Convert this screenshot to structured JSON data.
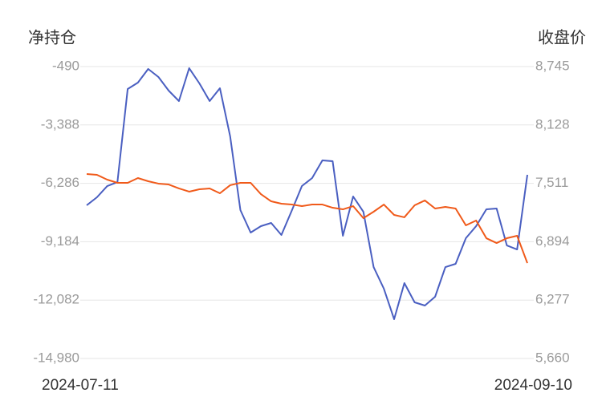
{
  "chart_data": {
    "type": "line",
    "y_label": "净持仓",
    "y2_label": "收盘价",
    "categories": [
      "2024-07-11",
      null,
      null,
      null,
      null,
      null,
      null,
      null,
      null,
      null,
      null,
      null,
      null,
      null,
      null,
      null,
      null,
      null,
      null,
      null,
      null,
      null,
      null,
      null,
      null,
      null,
      null,
      null,
      null,
      null,
      null,
      null,
      null,
      null,
      null,
      null,
      null,
      null,
      null,
      null,
      null,
      null,
      null,
      "2024-09-10"
    ],
    "series": [
      {
        "color": "#4a5fc1",
        "values": [
          -7377,
          -6979,
          -6422,
          -6223,
          -1605,
          -1286,
          -609,
          -1008,
          -1684,
          -2202,
          -570,
          -1326,
          -2202,
          -1565,
          -3953,
          -7616,
          -8731,
          -8412,
          -8253,
          -8850,
          -7656,
          -6422,
          -6024,
          -5148,
          -5188,
          -8890,
          -6939,
          -7696,
          -10443,
          -11517,
          -13030,
          -11239,
          -12194,
          -12353,
          -11915,
          -10443,
          -10283,
          -9009,
          -8412,
          -7576,
          -7536,
          -9368,
          -9567,
          -5864
        ]
      },
      {
        "color": "#f05a1a",
        "axis": "y2",
        "values": [
          7609,
          7601,
          7550,
          7516,
          7516,
          7567,
          7533,
          7508,
          7499,
          7457,
          7423,
          7448,
          7457,
          7406,
          7491,
          7516,
          7516,
          7397,
          7321,
          7296,
          7287,
          7270,
          7287,
          7287,
          7253,
          7236,
          7270,
          7143,
          7211,
          7287,
          7177,
          7152,
          7279,
          7330,
          7245,
          7262,
          7245,
          7067,
          7118,
          6931,
          6880,
          6931,
          6957,
          6668
        ]
      }
    ],
    "ylim": [
      -14980,
      -490
    ],
    "yticks": [
      -490,
      {
        "value": -3388,
        "label": "-3,388"
      },
      {
        "value": -6286,
        "label": "-6,286"
      },
      {
        "value": -9184,
        "label": "-9,184"
      },
      {
        "value": -12082,
        "label": "-12,082"
      },
      {
        "value": -14980,
        "label": "-14,980"
      }
    ],
    "y2lim": [
      5660,
      8745
    ],
    "y2ticks": [
      {
        "value": 8745,
        "label": "8,745"
      },
      {
        "value": 8128,
        "label": "8,128"
      },
      {
        "value": 7511,
        "label": "7,511"
      },
      {
        "value": 6894,
        "label": "6,894"
      },
      {
        "value": 6277,
        "label": "6,277"
      },
      {
        "value": 5660,
        "label": "5,660"
      }
    ],
    "grid": true
  }
}
